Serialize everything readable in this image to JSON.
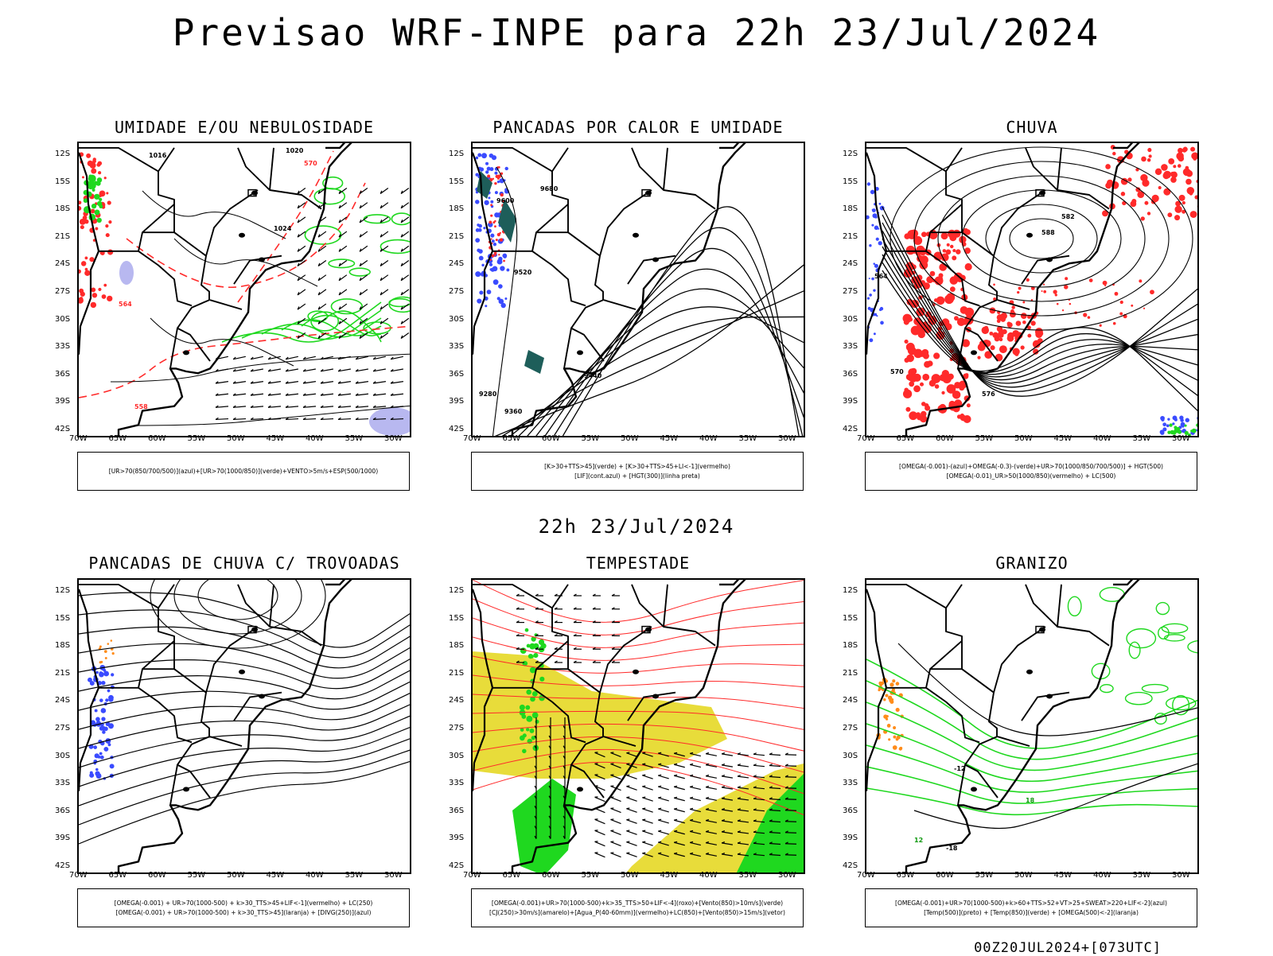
{
  "title": "Previsao WRF-INPE  para 22h 23/Jul/2024",
  "mid_title": "22h 23/Jul/2024",
  "footer": "00Z20JUL2024+[073UTC]",
  "colors": {
    "blue": "#3a4bff",
    "green": "#1fd81f",
    "red": "#ff2a2a",
    "yellow": "#e8dc3a",
    "orange": "#ff8c1a",
    "lavender": "#b8b8f0",
    "teal": "#1e5e5a",
    "black": "#000000"
  },
  "chart_data": [
    {
      "type": "map",
      "title": "UMIDADE E/OU NEBULOSIDADE",
      "y_ticks": [
        "12S",
        "15S",
        "18S",
        "21S",
        "24S",
        "27S",
        "30S",
        "33S",
        "36S",
        "39S",
        "42S"
      ],
      "x_ticks": [
        "70W",
        "65W",
        "60W",
        "55W",
        "50W",
        "45W",
        "40W",
        "35W",
        "30W"
      ],
      "contour_labels": [
        "1016",
        "1020",
        "1024",
        "570",
        "564",
        "558"
      ],
      "legend": [
        "[UR>70(850/700/500)](azul)+[UR>70(1000/850)](verde)+VENTO>5m/s+ESP(500/1000)"
      ]
    },
    {
      "type": "map",
      "title": "PANCADAS POR CALOR E UMIDADE",
      "y_ticks": [
        "12S",
        "15S",
        "18S",
        "21S",
        "24S",
        "27S",
        "30S",
        "33S",
        "36S",
        "39S",
        "42S"
      ],
      "x_ticks": [
        "70W",
        "65W",
        "60W",
        "55W",
        "50W",
        "45W",
        "40W",
        "35W",
        "30W"
      ],
      "contour_labels": [
        "9680",
        "9600",
        "9520",
        "9440",
        "9360",
        "9280"
      ],
      "legend": [
        "[K>30+TTS>45](verde) + [K>30+TTS>45+LI<-1](vermelho)",
        "[LIF](cont.azul) + [HGT(300)](linha preta)"
      ]
    },
    {
      "type": "map",
      "title": "CHUVA",
      "y_ticks": [
        "12S",
        "15S",
        "18S",
        "21S",
        "24S",
        "27S",
        "30S",
        "33S",
        "36S",
        "39S",
        "42S"
      ],
      "x_ticks": [
        "70W",
        "65W",
        "60W",
        "55W",
        "50W",
        "45W",
        "40W",
        "35W",
        "30W"
      ],
      "contour_labels": [
        "588",
        "582",
        "576",
        "570",
        "564"
      ],
      "legend": [
        "[OMEGA(-0.001)-(azul)+OMEGA(-0.3)-(verde)+UR>70(1000/850/700/500)] + HGT(500)",
        "[OMEGA(-0.01)_UR>50(1000/850)(vermelho) + LC(500)"
      ]
    },
    {
      "type": "map",
      "title": "PANCADAS DE CHUVA C/ TROVOADAS",
      "y_ticks": [
        "12S",
        "15S",
        "18S",
        "21S",
        "24S",
        "27S",
        "30S",
        "33S",
        "36S",
        "39S",
        "42S"
      ],
      "x_ticks": [
        "70W",
        "65W",
        "60W",
        "55W",
        "50W",
        "45W",
        "40W",
        "35W",
        "30W"
      ],
      "contour_labels": [],
      "legend": [
        "[OMEGA(-0.001) + UR>70(1000-500) + k>30_TTS>45+LIF<-1](vermelho) + LC(250)",
        "[OMEGA(-0.001) + UR>70(1000-500) + k>30_TTS>45](laranja) + [DIVG(250)](azul)"
      ]
    },
    {
      "type": "map",
      "title": "TEMPESTADE",
      "y_ticks": [
        "12S",
        "15S",
        "18S",
        "21S",
        "24S",
        "27S",
        "30S",
        "33S",
        "36S",
        "39S",
        "42S"
      ],
      "x_ticks": [
        "70W",
        "65W",
        "60W",
        "55W",
        "50W",
        "45W",
        "40W",
        "35W",
        "30W"
      ],
      "contour_labels": [],
      "legend": [
        "[OMEGA(-0.001)+UR>70(1000-500)+k>35_TTS>50+LIF<-4](roxo)+[Vento(850)>10m/s](verde)",
        "[CJ(250)>30m/s](amarelo)+[Agua_P(40-60mm)](vermelho)+LC(850)+[Vento(850)>15m/s](vetor)"
      ]
    },
    {
      "type": "map",
      "title": "GRANIZO",
      "y_ticks": [
        "12S",
        "15S",
        "18S",
        "21S",
        "24S",
        "27S",
        "30S",
        "33S",
        "36S",
        "39S",
        "42S"
      ],
      "x_ticks": [
        "70W",
        "65W",
        "60W",
        "55W",
        "50W",
        "45W",
        "40W",
        "35W",
        "30W"
      ],
      "contour_labels": [
        "-12",
        "-18",
        "12",
        "18"
      ],
      "legend": [
        "[OMEGA(-0.001)+UR>70(1000-500)+k>60+TTS>52+VT>25+SWEAT>220+LIF<-2](azul)",
        "[Temp(500)](preto) + [Temp(850)](verde) + [OMEGA(500)<-2](laranja)"
      ]
    }
  ]
}
